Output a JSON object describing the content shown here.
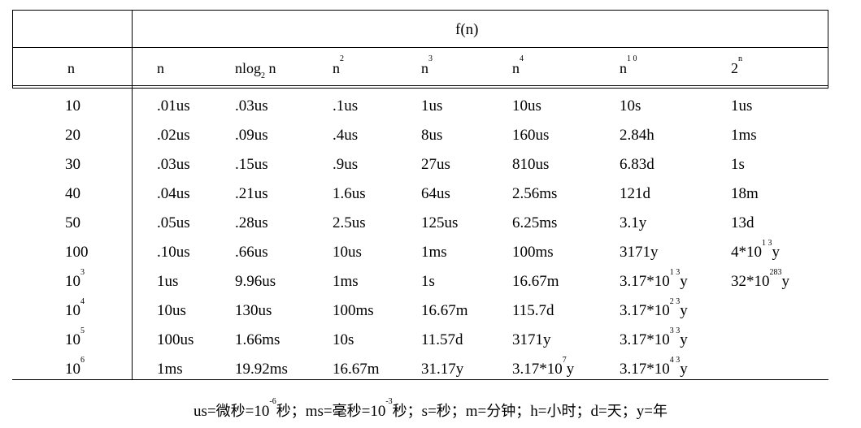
{
  "table": {
    "group_header": "f(n)",
    "n_header": "n",
    "columns": [
      {
        "base": "n",
        "sub": "",
        "sup": "",
        "after": ""
      },
      {
        "base": "nlog",
        "sub": "2",
        "sup": "",
        "after": " n"
      },
      {
        "base": "n",
        "sub": "",
        "sup": "2",
        "after": ""
      },
      {
        "base": "n",
        "sub": "",
        "sup": "3",
        "after": ""
      },
      {
        "base": "n",
        "sub": "",
        "sup": "4",
        "after": ""
      },
      {
        "base": "n",
        "sub": "",
        "sup": "1 0",
        "after": ""
      },
      {
        "base": "2",
        "sub": "",
        "sup": "n",
        "after": ""
      }
    ],
    "rows": [
      {
        "n": {
          "base": "10",
          "sup": ""
        },
        "cells": [
          {
            "base": ".01us"
          },
          {
            "base": ".03us"
          },
          {
            "base": ".1us"
          },
          {
            "base": "1us"
          },
          {
            "base": "10us"
          },
          {
            "base": "10s"
          },
          {
            "base": "1us"
          }
        ]
      },
      {
        "n": {
          "base": "20",
          "sup": ""
        },
        "cells": [
          {
            "base": ".02us"
          },
          {
            "base": ".09us"
          },
          {
            "base": ".4us"
          },
          {
            "base": "8us"
          },
          {
            "base": "160us"
          },
          {
            "base": "2.84h"
          },
          {
            "base": "1ms"
          }
        ]
      },
      {
        "n": {
          "base": "30",
          "sup": ""
        },
        "cells": [
          {
            "base": ".03us"
          },
          {
            "base": ".15us"
          },
          {
            "base": ".9us"
          },
          {
            "base": "27us"
          },
          {
            "base": "810us"
          },
          {
            "base": "6.83d"
          },
          {
            "base": "1s"
          }
        ]
      },
      {
        "n": {
          "base": "40",
          "sup": ""
        },
        "cells": [
          {
            "base": ".04us"
          },
          {
            "base": ".21us"
          },
          {
            "base": "1.6us"
          },
          {
            "base": "64us"
          },
          {
            "base": "2.56ms"
          },
          {
            "base": "121d"
          },
          {
            "base": "18m"
          }
        ]
      },
      {
        "n": {
          "base": "50",
          "sup": ""
        },
        "cells": [
          {
            "base": ".05us"
          },
          {
            "base": ".28us"
          },
          {
            "base": "2.5us"
          },
          {
            "base": "125us"
          },
          {
            "base": "6.25ms"
          },
          {
            "base": "3.1y"
          },
          {
            "base": "13d"
          }
        ]
      },
      {
        "n": {
          "base": "100",
          "sup": ""
        },
        "cells": [
          {
            "base": ".10us"
          },
          {
            "base": ".66us"
          },
          {
            "base": "10us"
          },
          {
            "base": "1ms"
          },
          {
            "base": "100ms"
          },
          {
            "base": "3171y"
          },
          {
            "base": "4*10",
            "sup": "1 3",
            "after": "y"
          }
        ]
      },
      {
        "n": {
          "base": "10",
          "sup": "3"
        },
        "cells": [
          {
            "base": "1us"
          },
          {
            "base": "9.96us"
          },
          {
            "base": "1ms"
          },
          {
            "base": "1s"
          },
          {
            "base": "16.67m"
          },
          {
            "base": "3.17*10",
            "sup": "1 3",
            "after": "y"
          },
          {
            "base": "32*10",
            "sup": "283",
            "after": "y"
          }
        ]
      },
      {
        "n": {
          "base": "10",
          "sup": "4"
        },
        "cells": [
          {
            "base": "10us"
          },
          {
            "base": "130us"
          },
          {
            "base": "100ms"
          },
          {
            "base": "16.67m"
          },
          {
            "base": "115.7d"
          },
          {
            "base": "3.17*10",
            "sup": "2 3",
            "after": "y"
          },
          {
            "base": ""
          }
        ]
      },
      {
        "n": {
          "base": "10",
          "sup": "5"
        },
        "cells": [
          {
            "base": "100us"
          },
          {
            "base": "1.66ms"
          },
          {
            "base": "10s"
          },
          {
            "base": "11.57d"
          },
          {
            "base": "3171y"
          },
          {
            "base": "3.17*10",
            "sup": "3 3",
            "after": "y"
          },
          {
            "base": ""
          }
        ]
      },
      {
        "n": {
          "base": "10",
          "sup": "6"
        },
        "cells": [
          {
            "base": "1ms"
          },
          {
            "base": "19.92ms"
          },
          {
            "base": "16.67m"
          },
          {
            "base": "31.17y"
          },
          {
            "base": "3.17*10",
            "sup": "7",
            "after": "y"
          },
          {
            "base": "3.17*10",
            "sup": "4 3",
            "after": "y"
          },
          {
            "base": ""
          }
        ]
      }
    ]
  },
  "footer": {
    "parts": [
      {
        "t": "us=",
        "cjk": false
      },
      {
        "t": "微秒",
        "cjk": true
      },
      {
        "t": "=10",
        "cjk": false
      },
      {
        "t": "-6",
        "sup": true
      },
      {
        "t": "秒；",
        "cjk": true
      },
      {
        "t": "ms=",
        "cjk": false
      },
      {
        "t": "毫秒",
        "cjk": true
      },
      {
        "t": "=10",
        "cjk": false
      },
      {
        "t": "-3",
        "sup": true
      },
      {
        "t": "秒；",
        "cjk": true
      },
      {
        "t": "s=",
        "cjk": false
      },
      {
        "t": "秒；",
        "cjk": true
      },
      {
        "t": "m=",
        "cjk": false
      },
      {
        "t": "分钟；",
        "cjk": true
      },
      {
        "t": "h=",
        "cjk": false
      },
      {
        "t": "小时；",
        "cjk": true
      },
      {
        "t": "d=",
        "cjk": false
      },
      {
        "t": "天；",
        "cjk": true
      },
      {
        "t": "y=",
        "cjk": false
      },
      {
        "t": "年",
        "cjk": true
      }
    ]
  }
}
